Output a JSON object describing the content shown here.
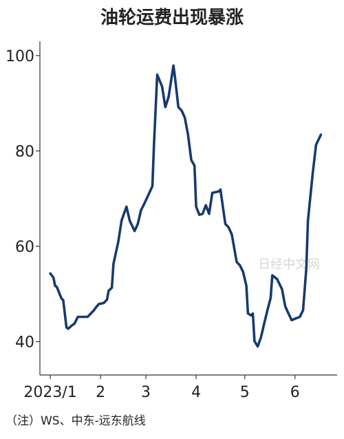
{
  "chart_data": {
    "type": "line",
    "title": "油轮运费出现暴涨",
    "note": "（注）WS、中东-远东航线",
    "watermark": "日经中文网",
    "x": [
      0,
      2,
      3,
      4,
      6,
      7,
      8,
      10,
      11,
      13,
      15,
      17,
      20,
      23,
      25,
      27,
      28,
      30,
      33,
      35,
      36,
      38,
      39,
      42,
      44,
      47,
      49,
      52,
      54,
      56,
      58,
      60,
      63,
      64,
      66,
      69,
      71,
      73,
      76,
      77,
      79,
      81,
      83,
      85,
      87,
      89,
      90,
      92,
      94,
      96,
      98,
      100,
      104,
      105,
      108,
      110,
      112,
      115,
      117,
      119,
      121,
      122,
      124,
      125,
      126,
      128,
      130,
      132,
      134,
      136,
      137,
      140,
      143,
      145,
      147,
      149,
      151,
      154,
      156,
      158,
      159,
      162,
      164,
      167
    ],
    "series": [
      {
        "color": "#173a6e",
        "values": [
          54.3,
          53.4,
          51.7,
          51.5,
          49.8,
          49,
          48.7,
          43,
          42.7,
          43.3,
          43.8,
          45.2,
          45.2,
          45.2,
          45.9,
          46.6,
          47.1,
          47.9,
          48.1,
          48.8,
          50.7,
          51.3,
          56.3,
          61,
          65.4,
          68.3,
          65.4,
          63.2,
          64.7,
          67.6,
          68.9,
          70.4,
          72.6,
          81.3,
          96,
          93.5,
          89.2,
          91.3,
          97.9,
          95.4,
          89.2,
          88.5,
          87,
          83.4,
          78.1,
          76.9,
          68.3,
          66.6,
          66.8,
          68.6,
          66.8,
          71.2,
          71.5,
          71.9,
          64.7,
          64,
          62.5,
          56.7,
          56,
          54.6,
          51.7,
          45.9,
          45.5,
          45.9,
          40.1,
          39,
          40.9,
          43.8,
          46.6,
          49.2,
          53.9,
          53.1,
          51,
          47.4,
          45.9,
          44.5,
          44.8,
          45.2,
          46.6,
          55.3,
          65.4,
          75.5,
          81.3,
          83.4
        ]
      }
    ],
    "xlim": [
      -6.4,
      177
    ],
    "xticks": [
      {
        "value": 0,
        "label": "2023/1"
      },
      {
        "value": 31,
        "label": "2"
      },
      {
        "value": 59,
        "label": "3"
      },
      {
        "value": 90,
        "label": "4"
      },
      {
        "value": 120,
        "label": "5"
      },
      {
        "value": 151,
        "label": "6"
      }
    ],
    "ylim": [
      33,
      103
    ],
    "yticks": [
      40,
      60,
      80,
      100
    ]
  }
}
